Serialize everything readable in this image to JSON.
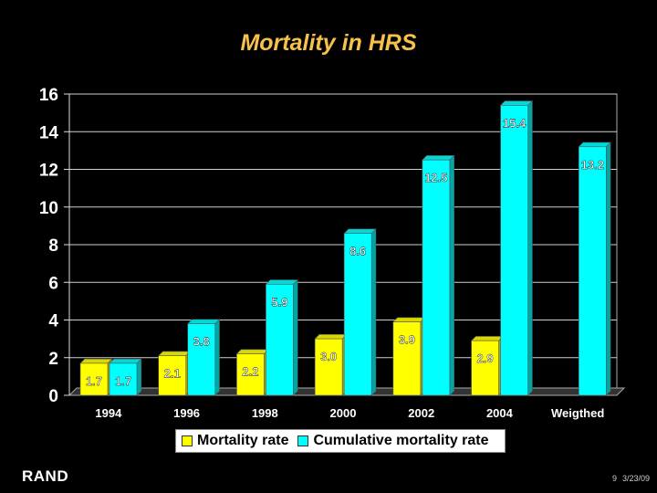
{
  "chart_data": {
    "type": "bar",
    "title": "Mortality in HRS",
    "categories": [
      "1994",
      "1996",
      "1998",
      "2000",
      "2002",
      "2004",
      "Weigthed"
    ],
    "series": [
      {
        "name": "Mortality rate",
        "color": "#ffff00",
        "values": [
          1.7,
          2.1,
          2.2,
          3.0,
          3.9,
          2.9,
          null
        ],
        "labels": [
          "1.7",
          "2.1",
          "2.2",
          "3.0",
          "3.9",
          "2.9",
          ""
        ]
      },
      {
        "name": "Cumulative mortality rate",
        "color": "#00ffff",
        "values": [
          1.7,
          3.8,
          5.9,
          8.6,
          12.5,
          15.4,
          13.2
        ],
        "labels": [
          "1.7",
          "3.8",
          "5.9",
          "8.6",
          "12.5",
          "15.4",
          "13.2"
        ]
      }
    ],
    "ylim": [
      0,
      16
    ],
    "yticks": [
      0,
      2,
      4,
      6,
      8,
      10,
      12,
      14,
      16
    ],
    "legend": "bottom"
  },
  "footer": {
    "org": "RAND",
    "slide_number": "9",
    "date": "3/23/09"
  }
}
